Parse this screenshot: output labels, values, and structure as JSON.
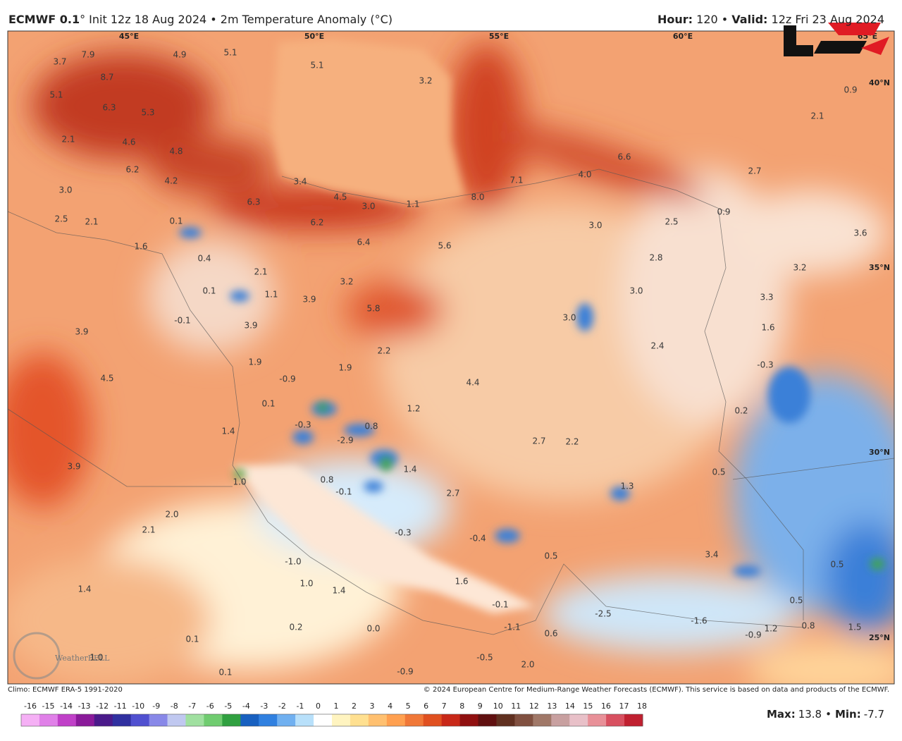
{
  "header": {
    "left": [
      "ECMWF 0.1",
      "° Init 12z 18 Aug 2024 • 2m Temperature Anomaly (°C)"
    ],
    "right": [
      "Hour:",
      " 120 • ",
      "Valid:",
      " 12z Fri 23 Aug 2024"
    ]
  },
  "lon_labels": [
    "45°E",
    "50°E",
    "55°E",
    "60°E",
    "65°E"
  ],
  "lat_labels": [
    "40°N",
    "35°N",
    "30°N",
    "25°N"
  ],
  "map_labels": [
    "3.7",
    "7.9",
    "8.7",
    "4.9",
    "5.1",
    "5.1",
    "5.1",
    "6.3",
    "5.3",
    "2.1",
    "4.6",
    "4.8",
    "6.2",
    "4.2",
    "3.0",
    "3.4",
    "6.3",
    "4.5",
    "3.0",
    "1.1",
    "8.0",
    "7.1",
    "4.0",
    "6.6",
    "3.2",
    "0.9",
    "2.1",
    "2.7",
    "2.5",
    "2.1",
    "0.1",
    "6.2",
    "6.4",
    "5.6",
    "0.9",
    "3.0",
    "2.5",
    "3.6",
    "1.6",
    "0.4",
    "2.1",
    "2.8",
    "3.2",
    "3.2",
    "0.1",
    "1.1",
    "3.9",
    "5.8",
    "3.0",
    "3.3",
    "-0.1",
    "3.0",
    "3.9",
    "3.9",
    "1.6",
    "2.2",
    "2.4",
    "4.5",
    "1.9",
    "-0.9",
    "1.9",
    "4.4",
    "-0.3",
    "0.1",
    "1.2",
    "0.2",
    "-0.3",
    "0.8",
    "1.4",
    "-2.9",
    "2.7",
    "2.2",
    "3.9",
    "1.4",
    "0.5",
    "1.0",
    "0.8",
    "-0.1",
    "2.7",
    "1.3",
    "2.0",
    "2.1",
    "-0.3",
    "-0.4",
    "3.4",
    "0.5",
    "0.5",
    "-1.0",
    "1.6",
    "1.0",
    "1.4",
    "1.4",
    "-0.1",
    "0.5",
    "-2.5",
    "-1.6",
    "-0.9",
    "1.2",
    "0.8",
    "1.5",
    "0.2",
    "0.0",
    "-1.1",
    "0.6",
    "0.1",
    "1.0",
    "-0.5",
    "2.0",
    "-0.9",
    "0.1"
  ],
  "watermark": "WeatherBELL",
  "footer": {
    "climo": "Climo: ECMWF ERA-5 1991-2020",
    "copyright": "© 2024 European Centre for Medium-Range Weather Forecasts (ECMWF). This service is based on data and products of the ECMWF.",
    "max": {
      "label": "Max:",
      "value": 13.8
    },
    "separator": "•",
    "min": {
      "label": "Min:",
      "value": -7.7
    }
  },
  "colorbar": {
    "ticks": [
      -16,
      -15,
      -14,
      -13,
      -12,
      -11,
      -10,
      -9,
      -8,
      -7,
      -6,
      -5,
      -4,
      -3,
      -2,
      -1,
      0,
      1,
      2,
      3,
      4,
      5,
      6,
      7,
      8,
      9,
      10,
      11,
      12,
      13,
      14,
      15,
      16,
      17,
      18
    ],
    "colors": [
      "#f5b0f5",
      "#e080e8",
      "#c040c8",
      "#8a1a9a",
      "#4a1a8a",
      "#3030a0",
      "#5050d0",
      "#8888e8",
      "#c0c8f0",
      "#a0e0a0",
      "#70cc70",
      "#30a040",
      "#1860c0",
      "#3080e0",
      "#70b0f0",
      "#b8e0fa",
      "#ffffff",
      "#fff4c0",
      "#ffe090",
      "#ffc070",
      "#ffa050",
      "#f07838",
      "#e05020",
      "#c82818",
      "#901010",
      "#601010",
      "#603020",
      "#805040",
      "#a07868",
      "#c8a0a0",
      "#e8c0c8",
      "#e89098",
      "#d85060",
      "#c02030"
    ]
  }
}
